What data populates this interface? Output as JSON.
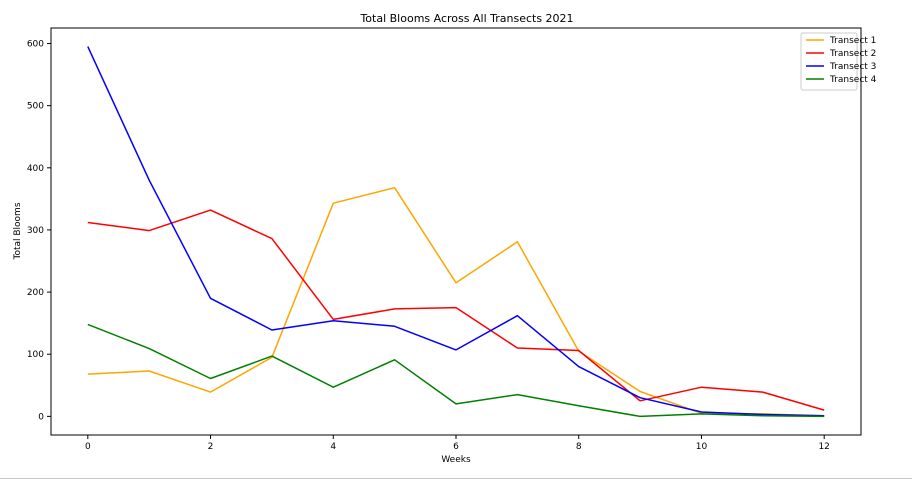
{
  "chart_data": {
    "type": "line",
    "title": "Total Blooms Across All Transects 2021",
    "xlabel": "Weeks",
    "ylabel": "Total Blooms",
    "x": [
      0,
      1,
      2,
      3,
      4,
      5,
      6,
      7,
      8,
      9,
      10,
      11,
      12
    ],
    "xlim": [
      -0.6,
      12.6
    ],
    "ylim": [
      -30,
      625
    ],
    "xticks": [
      0,
      2,
      4,
      6,
      8,
      10,
      12
    ],
    "yticks": [
      0,
      100,
      200,
      300,
      400,
      500,
      600
    ],
    "grid": false,
    "legend_position": "top-right",
    "series": [
      {
        "name": "Transect 1",
        "color": "#FFA500",
        "values": [
          68,
          73,
          39,
          95,
          343,
          368,
          215,
          281,
          105,
          40,
          5,
          4,
          1
        ]
      },
      {
        "name": "Transect 2",
        "color": "#FF0000",
        "values": [
          312,
          299,
          332,
          286,
          156,
          173,
          175,
          110,
          106,
          25,
          47,
          39,
          10
        ]
      },
      {
        "name": "Transect 3",
        "color": "#0000FF",
        "values": [
          595,
          380,
          190,
          139,
          154,
          145,
          107,
          162,
          80,
          30,
          7,
          3,
          1
        ]
      },
      {
        "name": "Transect 4",
        "color": "#008000",
        "values": [
          148,
          109,
          61,
          97,
          47,
          91,
          20,
          35,
          17,
          0,
          4,
          1,
          0
        ]
      }
    ]
  }
}
